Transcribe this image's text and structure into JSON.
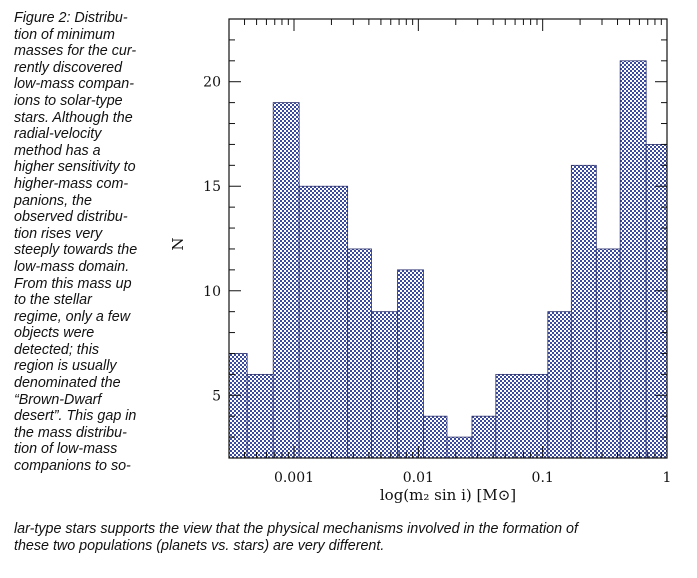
{
  "caption": {
    "lines": [
      "Figure 2: Distribu-",
      "tion of minimum",
      "masses for the cur-",
      "rently discovered",
      "low-mass compan-",
      "ions to solar-type",
      "stars. Although the",
      "radial-velocity",
      "method has a",
      "higher sensitivity to",
      "higher-mass com-",
      "panions, the",
      "observed distribu-",
      "tion rises very",
      "steeply towards the",
      "low-mass domain.",
      "From this mass up",
      "to the stellar",
      "regime, only a few",
      "objects were",
      "detected; this",
      "region is usually",
      "denominated the",
      "“Brown-Dwarf",
      "desert”. This gap in",
      "the mass distribu-",
      "tion of low-mass",
      "companions to so-"
    ],
    "tail_lines": [
      "lar-type stars supports the view that the physical mechanisms involved in the formation of",
      "these two populations (planets vs. stars) are very different."
    ]
  },
  "chart_data": {
    "type": "bar",
    "histogram": true,
    "x_scale": "log",
    "xlabel": "log(m₂ sin i) [M⊙]",
    "ylabel": "N",
    "xlim": [
      0.0003,
      1.0
    ],
    "ylim": [
      2.0,
      23.0
    ],
    "x_ticks": [
      0.001,
      0.01,
      0.1,
      1
    ],
    "x_tick_labels": [
      "0.001",
      "0.01",
      "0.1",
      "1"
    ],
    "y_ticks": [
      5,
      10,
      15,
      20
    ],
    "y_tick_labels": [
      "5",
      "10",
      "15",
      "20"
    ],
    "bins": [
      {
        "x0": 0.0003,
        "x1": 0.00042,
        "count": 7
      },
      {
        "x0": 0.00042,
        "x1": 0.00068,
        "count": 6
      },
      {
        "x0": 0.00068,
        "x1": 0.0011,
        "count": 19
      },
      {
        "x0": 0.0011,
        "x1": 0.0027,
        "count": 15
      },
      {
        "x0": 0.0027,
        "x1": 0.0042,
        "count": 12
      },
      {
        "x0": 0.0042,
        "x1": 0.0068,
        "count": 9
      },
      {
        "x0": 0.0068,
        "x1": 0.011,
        "count": 11
      },
      {
        "x0": 0.011,
        "x1": 0.017,
        "count": 4
      },
      {
        "x0": 0.017,
        "x1": 0.027,
        "count": 3
      },
      {
        "x0": 0.027,
        "x1": 0.042,
        "count": 4
      },
      {
        "x0": 0.042,
        "x1": 0.11,
        "count": 6
      },
      {
        "x0": 0.11,
        "x1": 0.17,
        "count": 9
      },
      {
        "x0": 0.17,
        "x1": 0.27,
        "count": 16
      },
      {
        "x0": 0.27,
        "x1": 0.42,
        "count": 12
      },
      {
        "x0": 0.42,
        "x1": 0.68,
        "count": 21
      },
      {
        "x0": 0.68,
        "x1": 1.0,
        "count": 17
      }
    ],
    "fill_color": "#3a4aa0",
    "grid": false
  }
}
